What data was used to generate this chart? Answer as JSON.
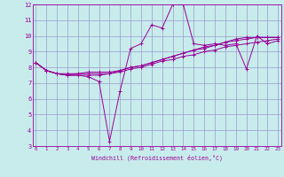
{
  "xlabel": "Windchill (Refroidissement éolien,°C)",
  "background_color": "#c8ecec",
  "line_color": "#990099",
  "grid_color": "#9999cc",
  "x_min": 0,
  "x_max": 23,
  "y_min": 3,
  "y_max": 12,
  "x_ticks": [
    0,
    1,
    2,
    3,
    4,
    5,
    6,
    7,
    8,
    9,
    10,
    11,
    12,
    13,
    14,
    15,
    16,
    17,
    18,
    19,
    20,
    21,
    22,
    23
  ],
  "y_ticks": [
    3,
    4,
    5,
    6,
    7,
    8,
    9,
    10,
    11,
    12
  ],
  "lines": [
    [
      8.3,
      7.8,
      7.6,
      7.5,
      7.5,
      7.4,
      7.1,
      3.3,
      6.5,
      9.2,
      9.5,
      10.7,
      10.5,
      12.0,
      12.0,
      9.5,
      9.4,
      9.5,
      9.4,
      9.5,
      7.9,
      10.0,
      9.5,
      9.7
    ],
    [
      8.3,
      7.8,
      7.6,
      7.5,
      7.5,
      7.5,
      7.5,
      7.6,
      7.7,
      7.9,
      8.0,
      8.2,
      8.4,
      8.5,
      8.7,
      8.8,
      9.0,
      9.1,
      9.3,
      9.4,
      9.5,
      9.6,
      9.7,
      9.8
    ],
    [
      8.3,
      7.8,
      7.6,
      7.5,
      7.6,
      7.6,
      7.6,
      7.6,
      7.8,
      8.0,
      8.1,
      8.3,
      8.5,
      8.7,
      8.9,
      9.1,
      9.3,
      9.4,
      9.6,
      9.7,
      9.8,
      9.9,
      9.9,
      9.9
    ],
    [
      8.3,
      7.8,
      7.6,
      7.6,
      7.6,
      7.7,
      7.7,
      7.7,
      7.8,
      8.0,
      8.1,
      8.3,
      8.5,
      8.7,
      8.9,
      9.1,
      9.2,
      9.4,
      9.6,
      9.8,
      9.9,
      9.9,
      9.9,
      9.9
    ]
  ]
}
